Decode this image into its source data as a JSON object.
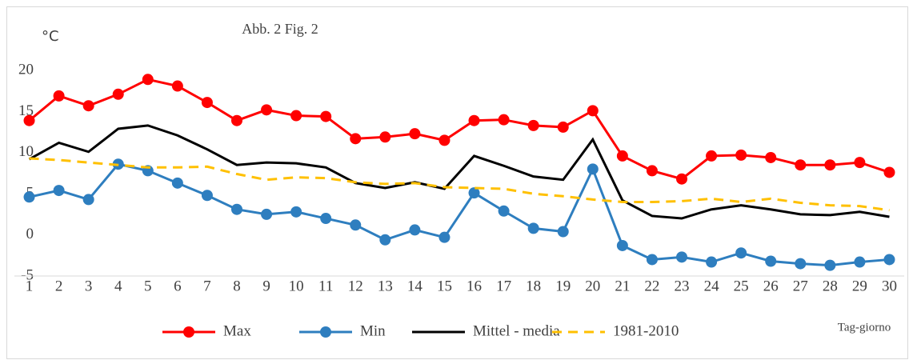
{
  "chart_data": {
    "type": "line",
    "title": "Abb. 2   Fig. 2",
    "y_label": "°C",
    "x_label": "Tag-giorno",
    "categories": [
      "1",
      "2",
      "3",
      "4",
      "5",
      "6",
      "7",
      "8",
      "9",
      "10",
      "11",
      "12",
      "13",
      "14",
      "15",
      "16",
      "17",
      "18",
      "19",
      "20",
      "21",
      "22",
      "23",
      "24",
      "25",
      "26",
      "27",
      "28",
      "29",
      "30"
    ],
    "series": [
      {
        "name": "Max",
        "color": "#ff0000",
        "dash": false,
        "markers": true,
        "values": [
          13.9,
          16.9,
          15.7,
          17.1,
          18.9,
          18.1,
          16.1,
          13.9,
          15.2,
          14.5,
          14.4,
          11.7,
          11.9,
          12.3,
          11.5,
          13.9,
          14.0,
          13.3,
          13.1,
          15.1,
          9.6,
          7.8,
          6.8,
          9.6,
          9.7,
          9.4,
          8.5,
          8.5,
          8.8,
          7.6
        ]
      },
      {
        "name": "Min",
        "color": "#2e7ebf",
        "dash": false,
        "markers": true,
        "values": [
          4.6,
          5.4,
          4.3,
          8.6,
          7.8,
          6.3,
          4.8,
          3.1,
          2.5,
          2.8,
          2.0,
          1.2,
          -0.6,
          0.6,
          -0.3,
          5.1,
          2.9,
          0.8,
          0.4,
          8.0,
          -1.3,
          -3.0,
          -2.7,
          -3.3,
          -2.2,
          -3.2,
          -3.5,
          -3.7,
          -3.3,
          -3.0
        ]
      },
      {
        "name": "Mittel - media",
        "color": "#000000",
        "dash": false,
        "markers": false,
        "values": [
          9.2,
          11.2,
          10.1,
          12.9,
          13.3,
          12.1,
          10.4,
          8.5,
          8.8,
          8.7,
          8.2,
          6.3,
          5.7,
          6.4,
          5.6,
          9.6,
          8.4,
          7.1,
          6.7,
          11.6,
          4.2,
          2.3,
          2.0,
          3.1,
          3.6,
          3.1,
          2.5,
          2.4,
          2.8,
          2.2
        ]
      },
      {
        "name": "1981-2010",
        "color": "#ffc000",
        "dash": true,
        "markers": false,
        "values": [
          9.3,
          9.1,
          8.8,
          8.5,
          8.2,
          8.2,
          8.3,
          7.4,
          6.7,
          7.0,
          6.9,
          6.4,
          6.2,
          6.3,
          5.8,
          5.7,
          5.6,
          5.0,
          4.7,
          4.3,
          4.0,
          4.0,
          4.1,
          4.4,
          4.0,
          4.4,
          3.9,
          3.6,
          3.5,
          3.0
        ]
      }
    ],
    "ylim": [
      -5,
      20
    ],
    "yticks": [
      -5,
      0,
      5,
      10,
      15,
      20
    ],
    "grid": false,
    "legend": "bottom"
  }
}
